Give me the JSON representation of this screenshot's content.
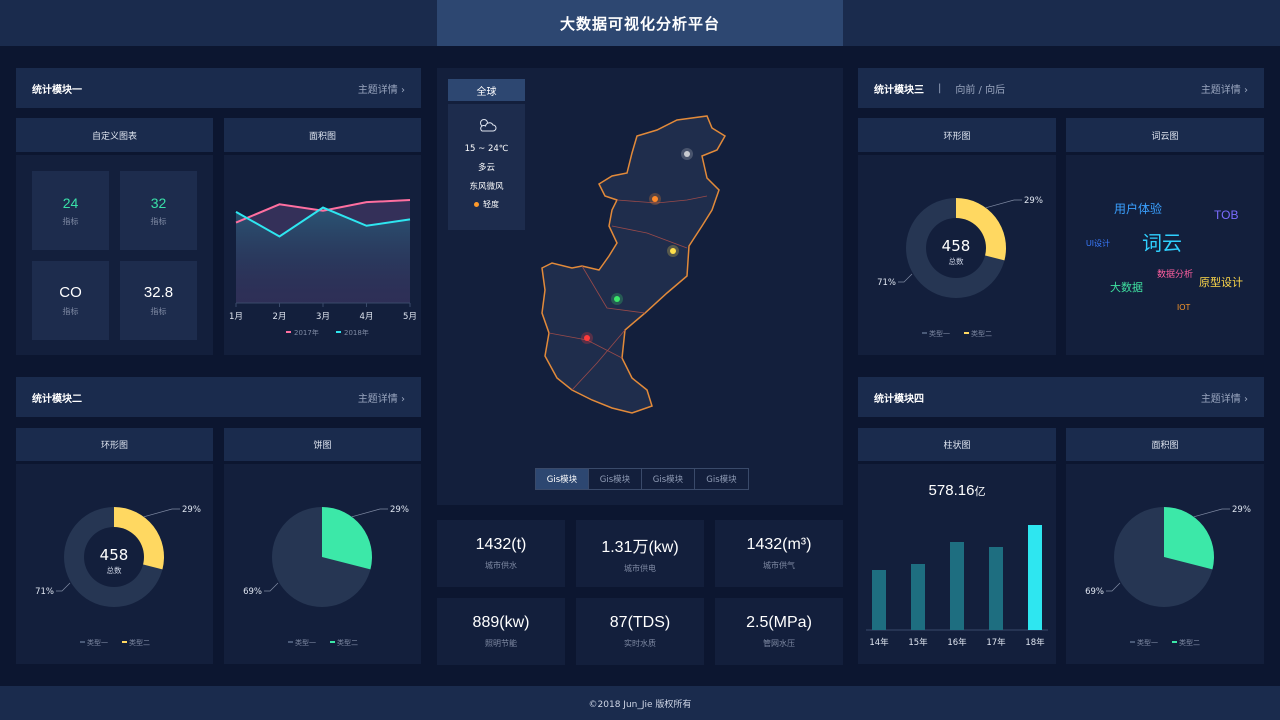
{
  "header": {
    "title": "大数据可视化分析平台"
  },
  "footer": {
    "text": "©2018 Jun_Jie 版权所有"
  },
  "module1": {
    "title": "统计模块一",
    "more": "主题详情 ›",
    "custom_title": "自定义图表",
    "stats": [
      {
        "value": "24",
        "label": "指标"
      },
      {
        "value": "32",
        "label": "指标"
      },
      {
        "value": "CO",
        "label": "指标"
      },
      {
        "value": "32.8",
        "label": "指标"
      }
    ],
    "area_title": "面积图"
  },
  "module2": {
    "title": "统计模块二",
    "more": "主题详情 ›",
    "ring_title": "环形图",
    "pie_title": "饼图"
  },
  "module3": {
    "title": "统计模块三",
    "sep": "|",
    "nav": "向前 / 向后",
    "more": "主题详情 ›",
    "ring_title": "环形图",
    "cloud_title": "词云图"
  },
  "module4": {
    "title": "统计模块四",
    "more": "主题详情 ›",
    "bar_title": "柱状图",
    "area_title": "面积图",
    "bar_total": "578.16",
    "bar_unit": "亿"
  },
  "map": {
    "region_tab": "全球",
    "weather": {
      "temp": "15 ~ 24℃",
      "sky": "多云",
      "wind": "东风微风",
      "air": "轻度"
    },
    "tabs": [
      "Gis模块",
      "Gis模块",
      "Gis模块",
      "Gis模块"
    ]
  },
  "kpis": [
    {
      "value": "1432(t)",
      "label": "城市供水"
    },
    {
      "value": "1.31万(kw)",
      "label": "城市供电"
    },
    {
      "value": "1432(m³)",
      "label": "城市供气"
    },
    {
      "value": "889(kw)",
      "label": "照明节能"
    },
    {
      "value": "87(TDS)",
      "label": "实时水质"
    },
    {
      "value": "2.5(MPa)",
      "label": "管网水压"
    }
  ],
  "ring": {
    "total": "458",
    "total_label": "总数",
    "pct_a": "29%",
    "pct_b": "71%",
    "legend_a": "类型一",
    "legend_b": "类型二"
  },
  "pie": {
    "pct_a": "29%",
    "pct_b": "69%",
    "legend_a": "类型一",
    "legend_b": "类型二"
  },
  "wordcloud": [
    {
      "text": "用户体验",
      "color": "#3aa0ff"
    },
    {
      "text": "TOB",
      "color": "#7b6cff"
    },
    {
      "text": "UI设计",
      "color": "#3a7bff"
    },
    {
      "text": "词云",
      "color": "#2fd0ff"
    },
    {
      "text": "数据分析",
      "color": "#ff5fa0"
    },
    {
      "text": "原型设计",
      "color": "#ffd84a"
    },
    {
      "text": "大数据",
      "color": "#3fe0a0"
    },
    {
      "text": "IOT",
      "color": "#ff9a2a"
    }
  ],
  "colors": {
    "accent_yellow": "#ffd861",
    "accent_green": "#3ce8a8",
    "cyan": "#2ee6f0",
    "pink": "#ff6fa0"
  },
  "chart_data": [
    {
      "type": "area",
      "title": "面积图",
      "categories": [
        "1月",
        "2月",
        "3月",
        "4月",
        "5月"
      ],
      "series": [
        {
          "name": "2017年",
          "values": [
            75,
            92,
            86,
            94,
            96
          ]
        },
        {
          "name": "2018年",
          "values": [
            85,
            62,
            89,
            72,
            78
          ]
        }
      ]
    },
    {
      "type": "pie",
      "title": "环形图",
      "values": [
        29,
        71
      ]
    },
    {
      "type": "pie",
      "title": "饼图",
      "values": [
        29,
        69
      ]
    },
    {
      "type": "bar",
      "title": "柱状图",
      "categories": [
        "14年",
        "15年",
        "16年",
        "17年",
        "18年"
      ],
      "values": [
        60,
        66,
        88,
        83,
        105
      ]
    }
  ]
}
